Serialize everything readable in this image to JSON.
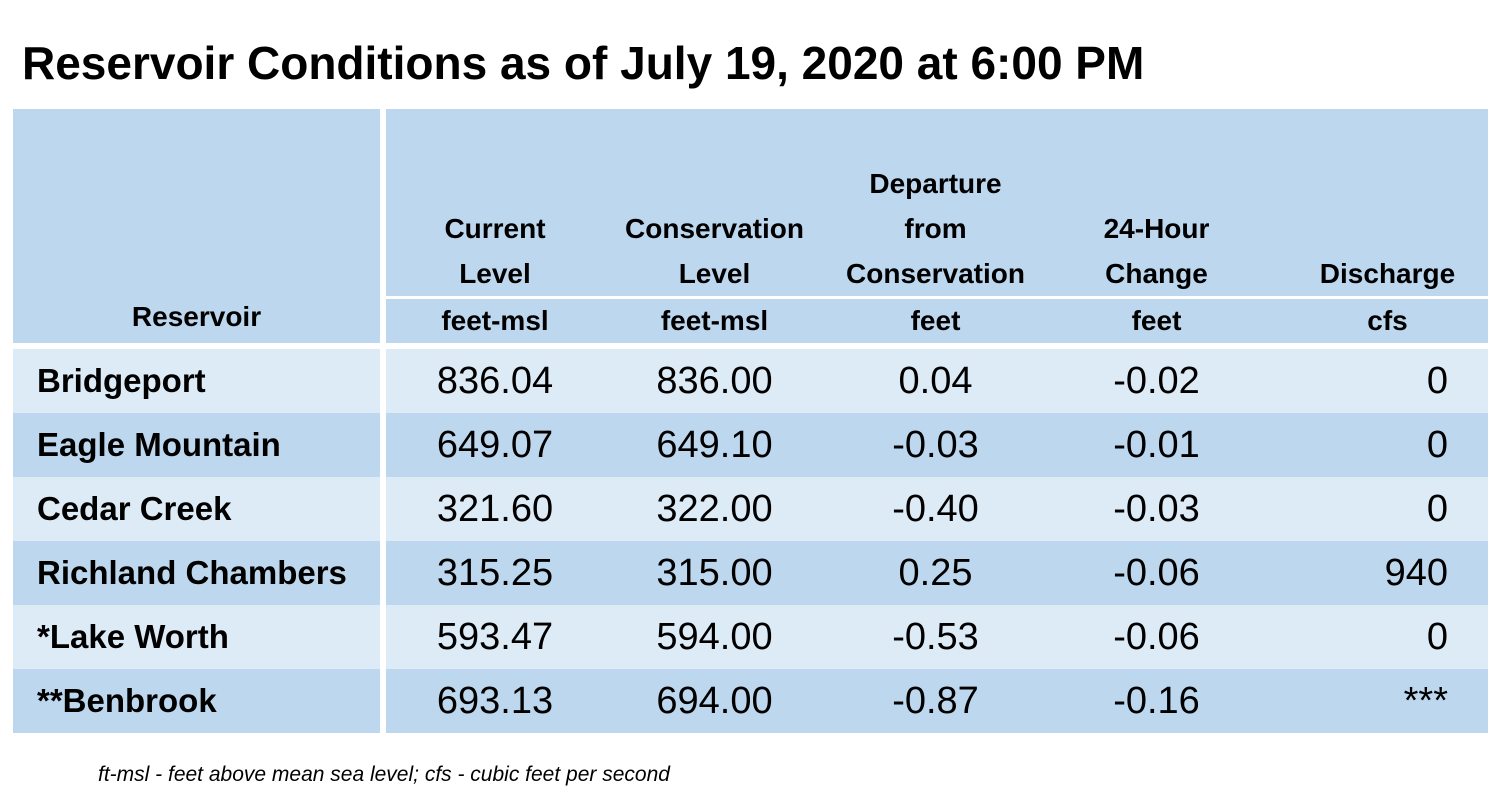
{
  "title": "Reservoir Conditions as of July 19, 2020 at 6:00 PM",
  "chart_data": {
    "type": "table",
    "title": "Reservoir Conditions as of July 19, 2020 at 6:00 PM",
    "columns": [
      {
        "label": "Reservoir",
        "unit": ""
      },
      {
        "label": "Current Level",
        "unit": "feet-msl"
      },
      {
        "label": "Conservation Level",
        "unit": "feet-msl"
      },
      {
        "label": "Departure from Conservation",
        "unit": "feet"
      },
      {
        "label": "24-Hour Change",
        "unit": "feet"
      },
      {
        "label": "Discharge",
        "unit": "cfs"
      }
    ],
    "header_lines": [
      [
        "Reservoir"
      ],
      [
        "Current",
        "Level"
      ],
      [
        "Conservation",
        "Level"
      ],
      [
        "Departure",
        "from",
        "Conservation"
      ],
      [
        "24-Hour",
        "Change"
      ],
      [
        "Discharge"
      ]
    ],
    "rows": [
      [
        "Bridgeport",
        "836.04",
        "836.00",
        "0.04",
        "-0.02",
        "0"
      ],
      [
        "Eagle Mountain",
        "649.07",
        "649.10",
        "-0.03",
        "-0.01",
        "0"
      ],
      [
        "Cedar Creek",
        "321.60",
        "322.00",
        "-0.40",
        "-0.03",
        "0"
      ],
      [
        "Richland Chambers",
        "315.25",
        "315.00",
        "0.25",
        "-0.06",
        "940"
      ],
      [
        "*Lake Worth",
        "593.47",
        "594.00",
        "-0.53",
        "-0.06",
        "0"
      ],
      [
        "**Benbrook",
        "693.13",
        "694.00",
        "-0.87",
        "-0.16",
        "***"
      ]
    ]
  },
  "footnote": "ft-msl - feet above mean sea level; cfs - cubic feet per second",
  "colors": {
    "header_bg": "#bdd7ee",
    "row_light": "#ddebf7",
    "row_dark": "#bdd7ee"
  }
}
